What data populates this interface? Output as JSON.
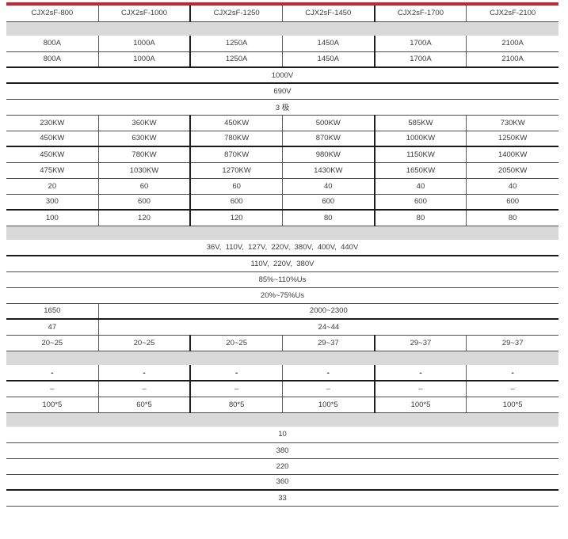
{
  "accent": {
    "top_bar_color": "#c9252b",
    "band_color": "#d9d9d9",
    "thin_rule_color": "#4c4c4c",
    "thick_rule_color": "#1a1a1a",
    "text_color": "#3a3a3a"
  },
  "table": {
    "columns": [
      "CJX2sF-800",
      "CJX2sF-1000",
      "CJX2sF-1250",
      "CJX2sF-1450",
      "CJX2sF-1700",
      "CJX2sF-2100"
    ],
    "rows": [
      {
        "type": "header",
        "thick": false
      },
      {
        "type": "band"
      },
      {
        "type": "cells",
        "cells": [
          "800A",
          "1000A",
          "1250A",
          "1450A",
          "1700A",
          "2100A"
        ],
        "thick": false
      },
      {
        "type": "cells",
        "cells": [
          "800A",
          "1000A",
          "1250A",
          "1450A",
          "1700A",
          "2100A"
        ],
        "thick": true
      },
      {
        "type": "span",
        "text": "1000V",
        "thick": true
      },
      {
        "type": "span",
        "text": "690V",
        "thick": false
      },
      {
        "type": "span",
        "text": "3 极",
        "thick": false
      },
      {
        "type": "cells",
        "cells": [
          "230KW",
          "360KW",
          "450KW",
          "500KW",
          "585KW",
          "730KW"
        ],
        "thick": false
      },
      {
        "type": "cells",
        "cells": [
          "450KW",
          "630KW",
          "780KW",
          "870KW",
          "1000KW",
          "1250KW"
        ],
        "thick": true
      },
      {
        "type": "cells",
        "cells": [
          "450KW",
          "780KW",
          "870KW",
          "980KW",
          "1150KW",
          "1400KW"
        ],
        "thick": false
      },
      {
        "type": "cells",
        "cells": [
          "475KW",
          "1030KW",
          "1270KW",
          "1430KW",
          "1650KW",
          "2050KW"
        ],
        "thick": false
      },
      {
        "type": "cells",
        "cells": [
          "20",
          "60",
          "60",
          "40",
          "40",
          "40"
        ],
        "thick": false
      },
      {
        "type": "cells",
        "cells": [
          "300",
          "600",
          "600",
          "600",
          "600",
          "600"
        ],
        "thick": true
      },
      {
        "type": "cells",
        "cells": [
          "100",
          "120",
          "120",
          "80",
          "80",
          "80"
        ],
        "thick": false
      },
      {
        "type": "band"
      },
      {
        "type": "span",
        "text": "36V,  110V,  127V,  220V,  380V,  400V,  440V",
        "thick": true
      },
      {
        "type": "span",
        "text": "110V,  220V,  380V",
        "thick": false
      },
      {
        "type": "span",
        "text": "85%~110%Us",
        "thick": false
      },
      {
        "type": "span",
        "text": "20%~75%Us",
        "thick": false
      },
      {
        "type": "split",
        "first": "1650",
        "rest": "2000~2300",
        "thick": true
      },
      {
        "type": "split",
        "first": "47",
        "rest": "24~44",
        "thick": false
      },
      {
        "type": "cells",
        "cells": [
          "20~25",
          "20~25",
          "20~25",
          "29~37",
          "29~37",
          "29~37"
        ],
        "thick": false
      },
      {
        "type": "band"
      },
      {
        "type": "cells",
        "cells": [
          "-",
          "-",
          "-",
          "-",
          "-",
          "-"
        ],
        "bold": true,
        "thick": true
      },
      {
        "type": "cells",
        "cells": [
          "–",
          "–",
          "–",
          "–",
          "–",
          "–"
        ],
        "thick": false
      },
      {
        "type": "cells",
        "cells": [
          "100*5",
          "60*5",
          "80*5",
          "100*5",
          "100*5",
          "100*5"
        ],
        "thick": false
      },
      {
        "type": "band"
      },
      {
        "type": "span",
        "text": "10",
        "thick": false
      },
      {
        "type": "span",
        "text": "380",
        "thick": false
      },
      {
        "type": "span",
        "text": "220",
        "thick": false
      },
      {
        "type": "span",
        "text": "360",
        "thick": true
      },
      {
        "type": "span",
        "text": "33",
        "thick": false
      }
    ]
  }
}
